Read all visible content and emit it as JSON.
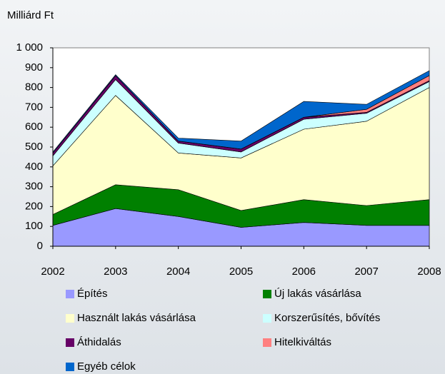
{
  "chart_data": {
    "type": "area",
    "stacked": true,
    "ylabel": "Milliárd Ft",
    "x": [
      2002,
      2003,
      2004,
      2005,
      2006,
      2007,
      2008
    ],
    "xlim": [
      2002,
      2008
    ],
    "xticks": [
      2002,
      2003,
      2004,
      2005,
      2006,
      2007,
      2008
    ],
    "ylim": [
      0,
      1000
    ],
    "yticks": [
      0,
      100,
      200,
      300,
      400,
      500,
      600,
      700,
      800,
      900,
      {
        "value": 1000,
        "label": "1 000"
      }
    ],
    "grid": false,
    "series": [
      {
        "name": "Építés",
        "color": "#9999ff",
        "values": [
          105,
          190,
          150,
          95,
          120,
          105,
          105
        ]
      },
      {
        "name": "Új lakás vásárlása",
        "color": "#008000",
        "values": [
          55,
          120,
          135,
          85,
          115,
          100,
          130
        ]
      },
      {
        "name": "Használt lakás vásárlása",
        "color": "#ffffcc",
        "values": [
          245,
          450,
          185,
          265,
          355,
          425,
          565
        ]
      },
      {
        "name": "Korszerűsítés, bővítés",
        "color": "#ccffff",
        "values": [
          50,
          80,
          50,
          30,
          50,
          40,
          30
        ]
      },
      {
        "name": "Áthidalás",
        "color": "#660066",
        "values": [
          15,
          20,
          10,
          15,
          10,
          5,
          5
        ]
      },
      {
        "name": "Hitelkiváltás",
        "color": "#ff8080",
        "values": [
          0,
          0,
          0,
          0,
          0,
          15,
          25
        ]
      },
      {
        "name": "Egyéb célok",
        "color": "#0066cc",
        "values": [
          5,
          5,
          15,
          40,
          80,
          25,
          25
        ]
      }
    ]
  }
}
